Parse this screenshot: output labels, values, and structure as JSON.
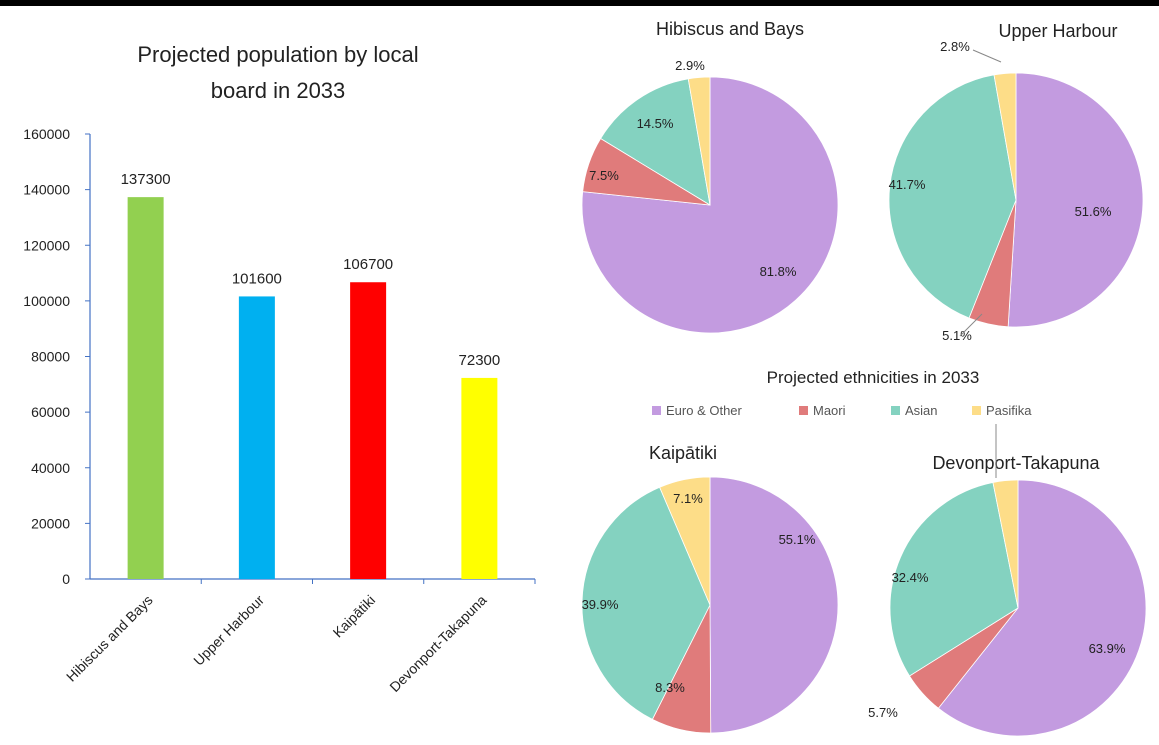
{
  "colors": {
    "euro": "#C39BE0",
    "maori": "#E07B7B",
    "asian": "#84D2C0",
    "pasifika": "#FDDD88",
    "axis": "#4472C4",
    "text": "#222222"
  },
  "chart_data": [
    {
      "type": "bar",
      "title": "Projected population by local board in 2033",
      "title_lines": [
        "Projected population by local",
        "board in 2033"
      ],
      "categories": [
        "Hibiscus and Bays",
        "Upper Harbour",
        "Kaipātiki",
        "Devonport-Takapuna"
      ],
      "values": [
        137300,
        101600,
        106700,
        72300
      ],
      "bar_colors": [
        "#92D050",
        "#00B0F0",
        "#FF0000",
        "#FFFF00"
      ],
      "ylim": [
        0,
        160000
      ],
      "yticks": [
        0,
        20000,
        40000,
        60000,
        80000,
        100000,
        120000,
        140000,
        160000
      ],
      "xlabel": "",
      "ylabel": "",
      "grid": false
    },
    {
      "type": "pie",
      "group_title": "Projected ethnicities in 2033",
      "legend": [
        "Euro & Other",
        "Maori",
        "Asian",
        "Pasifika"
      ],
      "legend_placement": "center",
      "pies": [
        {
          "title": "Hibiscus and Bays",
          "values": [
            81.8,
            7.5,
            14.5,
            2.9
          ],
          "labels": [
            "81.8%",
            "7.5%",
            "14.5%",
            "2.9%"
          ]
        },
        {
          "title": "Upper Harbour",
          "values": [
            51.6,
            5.1,
            41.7,
            2.8
          ],
          "labels": [
            "51.6%",
            "5.1%",
            "41.7%",
            "2.8%"
          ]
        },
        {
          "title": "Kaipātiki",
          "values": [
            55.1,
            8.3,
            39.9,
            7.1
          ],
          "labels": [
            "55.1%",
            "8.3%",
            "39.9%",
            "7.1%"
          ]
        },
        {
          "title": "Devonport-Takapuna",
          "values": [
            63.9,
            5.7,
            32.4,
            3.3
          ],
          "labels": [
            "63.9%",
            "5.7%",
            "32.4%",
            ""
          ]
        }
      ]
    }
  ]
}
